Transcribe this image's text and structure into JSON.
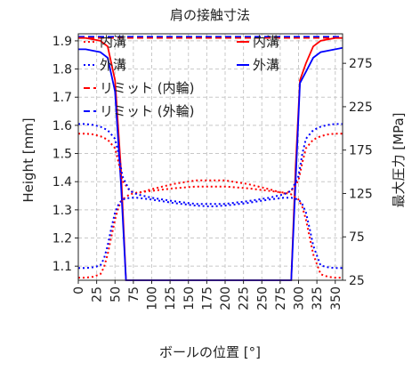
{
  "chart_data": {
    "type": "line",
    "title": "肩の接触寸法",
    "xlabel": "ボールの位置 [°]",
    "ylabel_left": "Height [mm]",
    "ylabel_right": "最大圧力 [MPa]",
    "xlim": [
      0,
      360
    ],
    "ylim_left": [
      1.05,
      1.925
    ],
    "ylim_right": [
      25,
      309
    ],
    "x_ticks": [
      0,
      25,
      50,
      75,
      100,
      125,
      150,
      175,
      200,
      225,
      250,
      275,
      300,
      325,
      350
    ],
    "y_ticks_left": [
      "1.1",
      "1.2",
      "1.3",
      "1.4",
      "1.5",
      "1.6",
      "1.7",
      "1.8",
      "1.9"
    ],
    "y_ticks_right": [
      "25",
      "75",
      "125",
      "175",
      "225",
      "275"
    ],
    "grid": true,
    "legend_left": [
      {
        "label": "内溝",
        "color": "#ff0000",
        "style": "dotted"
      },
      {
        "label": "外溝",
        "color": "#0000ff",
        "style": "dotted"
      },
      {
        "label": "リミット (内輪)",
        "color": "#ff0000",
        "style": "dashed"
      },
      {
        "label": "リミット (外輪)",
        "color": "#0000ff",
        "style": "dashed"
      }
    ],
    "legend_right": [
      {
        "label": "内溝",
        "color": "#ff0000",
        "style": "solid"
      },
      {
        "label": "外溝",
        "color": "#0000ff",
        "style": "solid"
      }
    ],
    "series": [
      {
        "name": "内溝",
        "axis": "left",
        "style": "solid",
        "color": "#ff0000",
        "x": [
          0,
          10,
          20,
          30,
          40,
          50,
          58,
          65,
          70,
          290,
          296,
          302,
          310,
          320,
          330,
          340,
          350,
          360
        ],
        "y": [
          1.91,
          1.91,
          1.905,
          1.9,
          1.88,
          1.76,
          1.45,
          1.05,
          1.05,
          1.05,
          1.45,
          1.76,
          1.82,
          1.88,
          1.9,
          1.905,
          1.91,
          1.91
        ]
      },
      {
        "name": "外溝",
        "axis": "left",
        "style": "solid",
        "color": "#0000ff",
        "x": [
          0,
          10,
          20,
          30,
          40,
          50,
          58,
          65,
          70,
          290,
          296,
          302,
          310,
          320,
          330,
          340,
          350,
          360
        ],
        "y": [
          1.87,
          1.87,
          1.865,
          1.86,
          1.84,
          1.72,
          1.4,
          1.05,
          1.05,
          1.05,
          1.4,
          1.75,
          1.79,
          1.84,
          1.86,
          1.865,
          1.87,
          1.875
        ]
      },
      {
        "name": "内溝",
        "axis": "right",
        "style": "dotted",
        "color": "#ff0000",
        "x": [
          0,
          10,
          20,
          30,
          40,
          50,
          55,
          60,
          70,
          80,
          100,
          130,
          160,
          180,
          200,
          230,
          260,
          280,
          290,
          300,
          305,
          310,
          320,
          330,
          340,
          350,
          360
        ],
        "y": [
          194,
          194,
          193,
          191,
          187,
          177,
          160,
          140,
          128,
          125,
          130,
          136,
          140,
          140,
          140,
          136,
          130,
          125,
          128,
          140,
          160,
          177,
          187,
          191,
          193,
          194,
          194
        ]
      },
      {
        "name": "内溝",
        "axis": "right",
        "style": "dotted",
        "color": "#ff0000",
        "x": [
          0,
          10,
          20,
          30,
          35,
          40,
          45,
          50,
          55,
          60,
          70,
          80,
          100,
          130,
          160,
          180,
          200,
          230,
          260,
          280,
          290,
          300,
          305,
          310,
          315,
          320,
          330,
          340,
          350,
          360
        ],
        "y": [
          28,
          28,
          29,
          32,
          40,
          55,
          75,
          95,
          110,
          118,
          124,
          126,
          128,
          131,
          133,
          133,
          133,
          131,
          128,
          126,
          124,
          118,
          110,
          95,
          75,
          55,
          32,
          29,
          28,
          28
        ]
      },
      {
        "name": "外溝",
        "axis": "right",
        "style": "dotted",
        "color": "#0000ff",
        "x": [
          0,
          10,
          20,
          30,
          40,
          50,
          55,
          60,
          70,
          80,
          100,
          130,
          160,
          180,
          200,
          230,
          260,
          280,
          290,
          300,
          305,
          310,
          320,
          330,
          340,
          350,
          360
        ],
        "y": [
          205,
          205,
          204,
          202,
          198,
          188,
          170,
          145,
          128,
          124,
          120,
          116,
          113,
          113,
          113,
          116,
          120,
          124,
          128,
          145,
          170,
          188,
          198,
          202,
          204,
          205,
          205
        ]
      },
      {
        "name": "外溝",
        "axis": "right",
        "style": "dotted",
        "color": "#0000ff",
        "x": [
          0,
          10,
          20,
          30,
          35,
          40,
          45,
          50,
          55,
          60,
          70,
          80,
          100,
          130,
          160,
          180,
          200,
          230,
          260,
          280,
          290,
          300,
          305,
          310,
          315,
          320,
          330,
          340,
          350,
          360
        ],
        "y": [
          39,
          39,
          40,
          42,
          50,
          65,
          85,
          103,
          113,
          118,
          120,
          120,
          118,
          114,
          111,
          110,
          111,
          114,
          118,
          120,
          120,
          118,
          113,
          103,
          85,
          65,
          42,
          40,
          39,
          39
        ]
      }
    ],
    "limit_inner": 1.91,
    "limit_outer": 1.915
  }
}
